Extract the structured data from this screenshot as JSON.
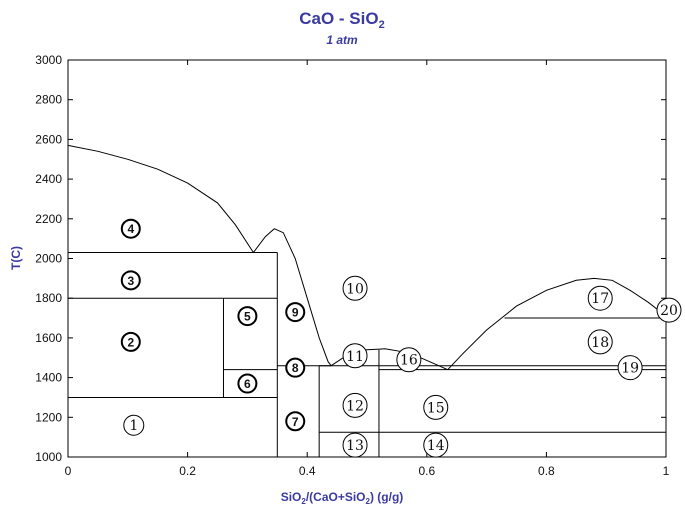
{
  "chart_data": {
    "type": "phase-diagram",
    "title": "CaO - SiO",
    "title_subscript": "2",
    "subtitle": "1 atm",
    "xlabel_parts": [
      {
        "text": "SiO",
        "sub": false
      },
      {
        "text": "2",
        "sub": true
      },
      {
        "text": "/(CaO+SiO",
        "sub": false
      },
      {
        "text": "2",
        "sub": true
      },
      {
        "text": ") (g/g)",
        "sub": false
      }
    ],
    "ylabel": "T(C)",
    "xlim": [
      0,
      1
    ],
    "ylim": [
      1000,
      3000
    ],
    "x_ticks": [
      "0",
      "0.2",
      "0.4",
      "0.6",
      "0.8",
      "1"
    ],
    "x_tick_values": [
      0,
      0.2,
      0.4,
      0.6,
      0.8,
      1
    ],
    "y_ticks": [
      "1000",
      "1200",
      "1400",
      "1600",
      "1800",
      "2000",
      "2200",
      "2400",
      "2600",
      "2800",
      "3000"
    ],
    "y_tick_values": [
      1000,
      1200,
      1400,
      1600,
      1800,
      2000,
      2200,
      2400,
      2600,
      2800,
      3000
    ],
    "liquidus": [
      {
        "name": "liquidus-cao",
        "points": [
          [
            0,
            2570
          ],
          [
            0.05,
            2540
          ],
          [
            0.1,
            2500
          ],
          [
            0.15,
            2450
          ],
          [
            0.2,
            2380
          ],
          [
            0.25,
            2280
          ],
          [
            0.28,
            2170
          ],
          [
            0.31,
            2030
          ]
        ]
      },
      {
        "name": "liquidus-ca2sio4-peak",
        "points": [
          [
            0.31,
            2030
          ],
          [
            0.33,
            2110
          ],
          [
            0.345,
            2150
          ],
          [
            0.36,
            2130
          ],
          [
            0.38,
            2000
          ],
          [
            0.4,
            1800
          ],
          [
            0.42,
            1600
          ],
          [
            0.435,
            1480
          ],
          [
            0.44,
            1460
          ]
        ]
      },
      {
        "name": "liquidus-middle-hump",
        "points": [
          [
            0.44,
            1460
          ],
          [
            0.47,
            1520
          ],
          [
            0.5,
            1540
          ],
          [
            0.53,
            1545
          ],
          [
            0.56,
            1530
          ],
          [
            0.59,
            1500
          ],
          [
            0.62,
            1460
          ],
          [
            0.635,
            1440
          ]
        ]
      },
      {
        "name": "liquidus-silica",
        "points": [
          [
            0.635,
            1440
          ],
          [
            0.66,
            1520
          ],
          [
            0.7,
            1640
          ],
          [
            0.75,
            1760
          ],
          [
            0.8,
            1840
          ],
          [
            0.85,
            1890
          ],
          [
            0.88,
            1900
          ],
          [
            0.91,
            1890
          ],
          [
            0.94,
            1840
          ],
          [
            0.97,
            1780
          ],
          [
            1.0,
            1710
          ]
        ]
      }
    ],
    "segments": [
      {
        "name": "eutectic-2030",
        "x1": 0,
        "y1": 2030,
        "x2": 0.35,
        "y2": 2030
      },
      {
        "name": "transition-1800",
        "x1": 0,
        "y1": 1800,
        "x2": 0.35,
        "y2": 1800
      },
      {
        "name": "transition-1300",
        "x1": 0,
        "y1": 1300,
        "x2": 0.35,
        "y2": 1300
      },
      {
        "name": "transition-1440-left",
        "x1": 0.26,
        "y1": 1440,
        "x2": 0.35,
        "y2": 1440
      },
      {
        "name": "c3s-vertical",
        "x1": 0.26,
        "y1": 1300,
        "x2": 0.26,
        "y2": 1800
      },
      {
        "name": "c2s-vertical",
        "x1": 0.35,
        "y1": 1000,
        "x2": 0.35,
        "y2": 2030
      },
      {
        "name": "eutectic-1460",
        "x1": 0.35,
        "y1": 1460,
        "x2": 0.44,
        "y2": 1460
      },
      {
        "name": "c3s2-vertical",
        "x1": 0.42,
        "y1": 1000,
        "x2": 0.42,
        "y2": 1460
      },
      {
        "name": "line-1460-mid",
        "x1": 0.42,
        "y1": 1460,
        "x2": 0.52,
        "y2": 1460
      },
      {
        "name": "cs-vertical",
        "x1": 0.52,
        "y1": 1000,
        "x2": 0.52,
        "y2": 1540
      },
      {
        "name": "eutectic-1440",
        "x1": 0.52,
        "y1": 1440,
        "x2": 1.0,
        "y2": 1440
      },
      {
        "name": "line-1460-right",
        "x1": 0.52,
        "y1": 1460,
        "x2": 1.0,
        "y2": 1460
      },
      {
        "name": "transition-1125",
        "x1": 0.42,
        "y1": 1125,
        "x2": 1.0,
        "y2": 1125
      },
      {
        "name": "transition-1700",
        "x1": 0.73,
        "y1": 1700,
        "x2": 1.0,
        "y2": 1700
      }
    ],
    "regions": [
      {
        "label": "1",
        "x": 0.11,
        "y": 1160,
        "style": "plain"
      },
      {
        "label": "2",
        "x": 0.105,
        "y": 1580,
        "style": "bold"
      },
      {
        "label": "3",
        "x": 0.105,
        "y": 1890,
        "style": "bold"
      },
      {
        "label": "4",
        "x": 0.105,
        "y": 2150,
        "style": "bold"
      },
      {
        "label": "5",
        "x": 0.3,
        "y": 1710,
        "style": "bold"
      },
      {
        "label": "6",
        "x": 0.3,
        "y": 1370,
        "style": "bold"
      },
      {
        "label": "7",
        "x": 0.38,
        "y": 1180,
        "style": "bold"
      },
      {
        "label": "8",
        "x": 0.38,
        "y": 1450,
        "style": "bold"
      },
      {
        "label": "9",
        "x": 0.38,
        "y": 1730,
        "style": "bold"
      },
      {
        "label": "10",
        "x": 0.48,
        "y": 1850,
        "style": "plain"
      },
      {
        "label": "11",
        "x": 0.48,
        "y": 1510,
        "style": "plain"
      },
      {
        "label": "12",
        "x": 0.48,
        "y": 1260,
        "style": "plain"
      },
      {
        "label": "13",
        "x": 0.48,
        "y": 1060,
        "style": "plain"
      },
      {
        "label": "14",
        "x": 0.615,
        "y": 1060,
        "style": "plain"
      },
      {
        "label": "15",
        "x": 0.615,
        "y": 1250,
        "style": "plain"
      },
      {
        "label": "16",
        "x": 0.57,
        "y": 1490,
        "style": "plain"
      },
      {
        "label": "17",
        "x": 0.89,
        "y": 1800,
        "style": "plain"
      },
      {
        "label": "18",
        "x": 0.89,
        "y": 1580,
        "style": "plain"
      },
      {
        "label": "19",
        "x": 0.94,
        "y": 1450,
        "style": "plain"
      },
      {
        "label": "20",
        "x": 1.005,
        "y": 1740,
        "style": "plain"
      }
    ]
  }
}
